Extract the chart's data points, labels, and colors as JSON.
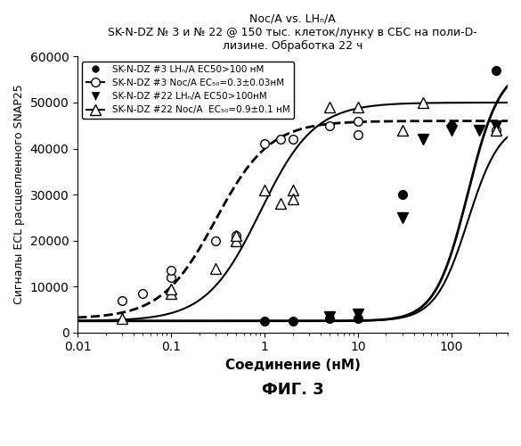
{
  "title_line1": "Noc/A vs. LHₙ/A",
  "title_line2": "SK-N-DZ № 3 и № 22 @ 150 тыс. клеток/лунку в СБС на поли-D-",
  "title_line3": "лизине. Обработка 22 ч",
  "xlabel": "Соединение (нМ)",
  "ylabel": "Сигналы ECL расщепленного SNAP25",
  "fig_label": "ФИГ. 3",
  "ylim": [
    0,
    60000
  ],
  "xlim": [
    0.01,
    400
  ],
  "yticks": [
    0,
    10000,
    20000,
    30000,
    40000,
    50000,
    60000
  ],
  "noc3_x": [
    0.03,
    0.05,
    0.1,
    0.1,
    0.3,
    0.5,
    0.5,
    1.0,
    1.5,
    2.0,
    5.0,
    10.0,
    10.0,
    300.0
  ],
  "noc3_y": [
    7000,
    8500,
    12000,
    13500,
    20000,
    20500,
    21000,
    41000,
    42000,
    42000,
    45000,
    43000,
    46000,
    44000
  ],
  "noc3_ec50": 0.3,
  "noc3_ymax": 46000,
  "noc3_ymin": 3000,
  "lhn3_x": [
    1.0,
    2.0,
    5.0,
    10.0,
    30.0,
    100.0,
    300.0
  ],
  "lhn3_y": [
    2500,
    2500,
    3000,
    3000,
    30000,
    45000,
    57000
  ],
  "lhn3_ec50": 150,
  "lhn3_ymax": 58000,
  "lhn3_ymin": 2500,
  "noc22_x": [
    0.03,
    0.1,
    0.1,
    0.3,
    0.5,
    0.5,
    1.0,
    1.5,
    2.0,
    2.0,
    5.0,
    10.0,
    30.0,
    50.0,
    300.0
  ],
  "noc22_y": [
    3000,
    8500,
    9500,
    14000,
    20000,
    21000,
    31000,
    28000,
    31000,
    29000,
    49000,
    49000,
    44000,
    50000,
    44000
  ],
  "noc22_ec50": 0.9,
  "noc22_ymax": 50000,
  "noc22_ymin": 2500,
  "lhn22_x": [
    5.0,
    10.0,
    30.0,
    50.0,
    100.0,
    200.0,
    300.0
  ],
  "lhn22_y": [
    3500,
    4000,
    25000,
    42000,
    44000,
    44000,
    45000
  ],
  "lhn22_ec50": 150,
  "lhn22_ymax": 46000,
  "lhn22_ymin": 2500,
  "legend": [
    "SK-N-DZ #3 LHₙ/A EC50>100 нМ",
    "SK-N-DZ #3 Noc/A EC₅₀=0.3±0.03нМ",
    "SK-N-DZ #22 LHₙ/A EC50>100нМ",
    "SK-N-DZ #22 Noc/A  EC₅₀=0.9±0.1 нМ"
  ]
}
